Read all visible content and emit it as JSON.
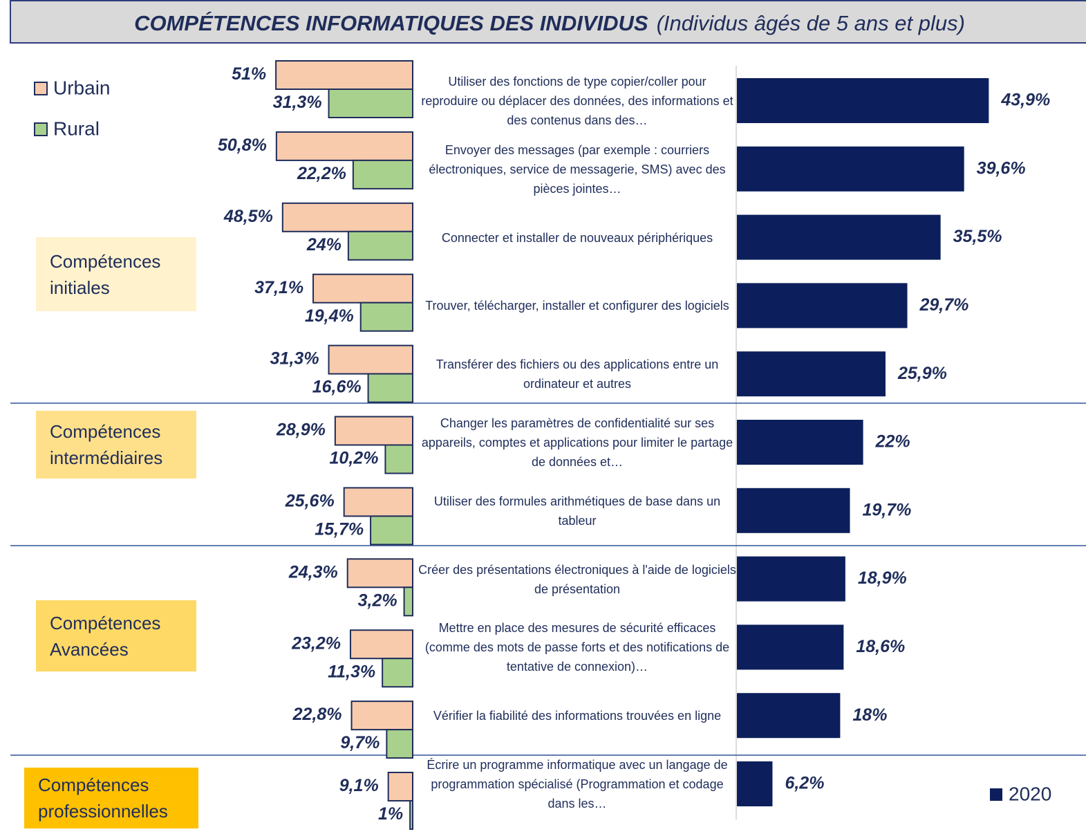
{
  "chart_data": {
    "type": "bar",
    "orientation": "horizontal",
    "title": "COMPÉTENCES INFORMATIQUES DES INDIVIDUS",
    "subtitle": "(Individus âgés de 5 ans et plus)",
    "categories": [
      "Utiliser des fonctions de type copier/coller pour reproduire ou déplacer des données, des informations et des contenus dans des…",
      "Envoyer des messages (par exemple : courriers électroniques, service de messagerie, SMS) avec des pièces jointes…",
      "Connecter et installer de nouveaux périphériques",
      "Trouver, télécharger, installer et configurer des logiciels",
      "Transférer des fichiers ou des applications entre un ordinateur et autres",
      "Changer les paramètres de confidentialité sur ses appareils, comptes et applications pour limiter le partage de données et…",
      "Utiliser des formules arithmétiques de base dans un tableur",
      "Créer des présentations électroniques à l'aide de logiciels de présentation",
      "Mettre en place des mesures de sécurité efficaces (comme des mots de passe forts et des notifications de tentative de connexion)…",
      "Vérifier la fiabilité des informations trouvées en ligne",
      "Écrire un programme informatique avec un langage de programmation spécialisé (Programmation et codage dans les…"
    ],
    "groups": [
      "Compétences initiales",
      "Compétences intermédiaires",
      "Compétences Avancées",
      "Compétences professionnelles"
    ],
    "series": [
      {
        "name": "Urbain",
        "color": "#f8cbad",
        "values": [
          51,
          50.8,
          48.5,
          37.1,
          31.3,
          28.9,
          25.6,
          24.3,
          23.2,
          22.8,
          9.1
        ],
        "value_labels": [
          "51%",
          "50,8%",
          "48,5%",
          "37,1%",
          "31,3%",
          "28,9%",
          "25,6%",
          "24,3%",
          "23,2%",
          "22,8%",
          "9,1%"
        ]
      },
      {
        "name": "Rural",
        "color": "#a9d18e",
        "values": [
          31.3,
          22.2,
          24,
          19.4,
          16.6,
          10.2,
          15.7,
          3.2,
          11.3,
          9.7,
          1
        ],
        "value_labels": [
          "31,3%",
          "22,2%",
          "24%",
          "19,4%",
          "16,6%",
          "10,2%",
          "15,7%",
          "3,2%",
          "11,3%",
          "9,7%",
          "1%"
        ]
      },
      {
        "name": "2020",
        "color": "#0c1f5c",
        "values": [
          43.9,
          39.6,
          35.5,
          29.7,
          25.9,
          22,
          19.7,
          18.9,
          18.6,
          18,
          6.2
        ],
        "value_labels": [
          "43,9%",
          "39,6%",
          "35,5%",
          "29,7%",
          "25,9%",
          "22%",
          "19,7%",
          "18,9%",
          "18,6%",
          "18%",
          "6,2%"
        ]
      }
    ]
  }
}
